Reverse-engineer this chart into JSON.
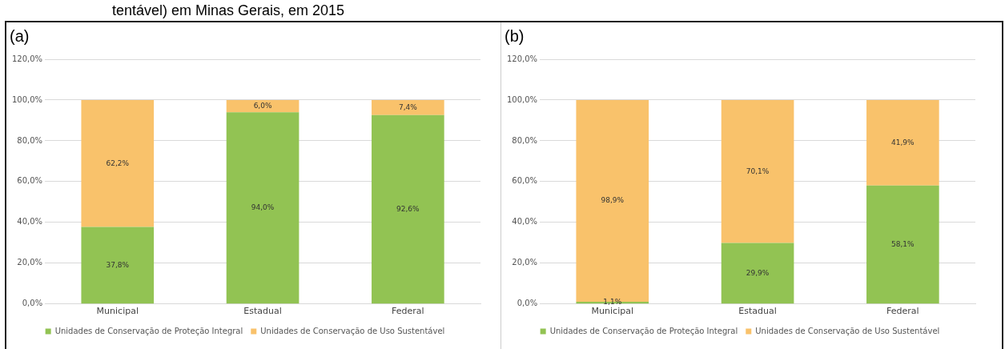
{
  "chart_data": [
    {
      "type": "bar",
      "title": "(a)",
      "annotations": [
        "tentável) em Minas  Gerais, em 2015"
      ],
      "categories": [
        "Municipal",
        "Estadual",
        "Federal"
      ],
      "stacked": true,
      "legend": "bottom",
      "grid": "y",
      "ylim": [
        0,
        120
      ],
      "yticks": [
        {
          "value": 0,
          "label": "0,0%"
        },
        {
          "value": 20,
          "label": "20,0%"
        },
        {
          "value": 40,
          "label": "40,0%"
        },
        {
          "value": 60,
          "label": "60,0%"
        },
        {
          "value": 80,
          "label": "80,0%"
        },
        {
          "value": 100,
          "label": "100,0%"
        },
        {
          "value": 120,
          "label": "120,0%"
        }
      ],
      "series": [
        {
          "name": "Unidades de Conservação de Proteção Integral",
          "color": "#92c353",
          "values": [
            37.8,
            94.0,
            92.6
          ],
          "value_labels": [
            "37,8%",
            "94,0%",
            "92,6%"
          ]
        },
        {
          "name": "Unidades de Conservação de Uso Sustentável",
          "color": "#f9c26b",
          "values": [
            62.2,
            6.0,
            7.4
          ],
          "value_labels": [
            "62,2%",
            "6,0%",
            "7,4%"
          ]
        }
      ]
    },
    {
      "type": "bar",
      "title": "(b)",
      "categories": [
        "Municipal",
        "Estadual",
        "Federal"
      ],
      "stacked": true,
      "legend": "bottom",
      "grid": "y",
      "ylim": [
        0,
        120
      ],
      "yticks": [
        {
          "value": 0,
          "label": "0,0%"
        },
        {
          "value": 20,
          "label": "20,0%"
        },
        {
          "value": 40,
          "label": "40,0%"
        },
        {
          "value": 60,
          "label": "60,0%"
        },
        {
          "value": 80,
          "label": "80,0%"
        },
        {
          "value": 100,
          "label": "100,0%"
        },
        {
          "value": 120,
          "label": "120,0%"
        }
      ],
      "series": [
        {
          "name": "Unidades de Conservação de Proteção Integral",
          "color": "#92c353",
          "values": [
            1.1,
            29.9,
            58.1
          ],
          "value_labels": [
            "1,1%",
            "29,9%",
            "58,1%"
          ]
        },
        {
          "name": "Unidades de Conservação de Uso Sustentável",
          "color": "#f9c26b",
          "values": [
            98.9,
            70.1,
            41.9
          ],
          "value_labels": [
            "98,9%",
            "70,1%",
            "41,9%"
          ]
        }
      ]
    }
  ]
}
